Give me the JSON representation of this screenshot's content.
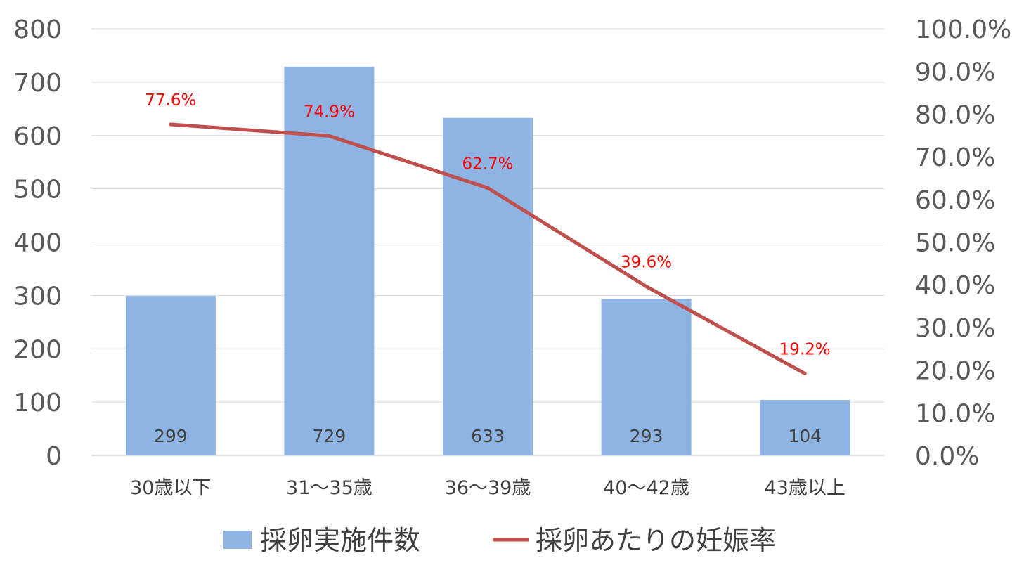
{
  "chart_data": {
    "type": "bar",
    "categories": [
      "30歳以下",
      "31～35歳",
      "36～39歳",
      "40～42歳",
      "43歳以上"
    ],
    "series": [
      {
        "name": "採卵実施件数",
        "type": "bar",
        "axis": "left",
        "values": [
          299,
          729,
          633,
          293,
          104
        ],
        "labels": [
          "299",
          "729",
          "633",
          "293",
          "104"
        ],
        "color": "#8eb4e3"
      },
      {
        "name": "採卵あたりの妊娠率",
        "type": "line",
        "axis": "right",
        "values": [
          77.6,
          74.9,
          62.7,
          39.6,
          19.2
        ],
        "labels": [
          "77.6%",
          "74.9%",
          "62.7%",
          "39.6%",
          "19.2%"
        ],
        "color": "#c0504d",
        "label_color": "#ff0000"
      }
    ],
    "y_left": {
      "lim": [
        0,
        800
      ],
      "ticks": [
        "0",
        "100",
        "200",
        "300",
        "400",
        "500",
        "600",
        "700",
        "800"
      ]
    },
    "y_right": {
      "lim": [
        0,
        100
      ],
      "ticks": [
        "0.0%",
        "10.0%",
        "20.0%",
        "30.0%",
        "40.0%",
        "50.0%",
        "60.0%",
        "70.0%",
        "80.0%",
        "90.0%",
        "100.0%"
      ]
    },
    "grid": true,
    "legend": "bottom",
    "title": "",
    "xlabel": "",
    "ylabel": ""
  }
}
